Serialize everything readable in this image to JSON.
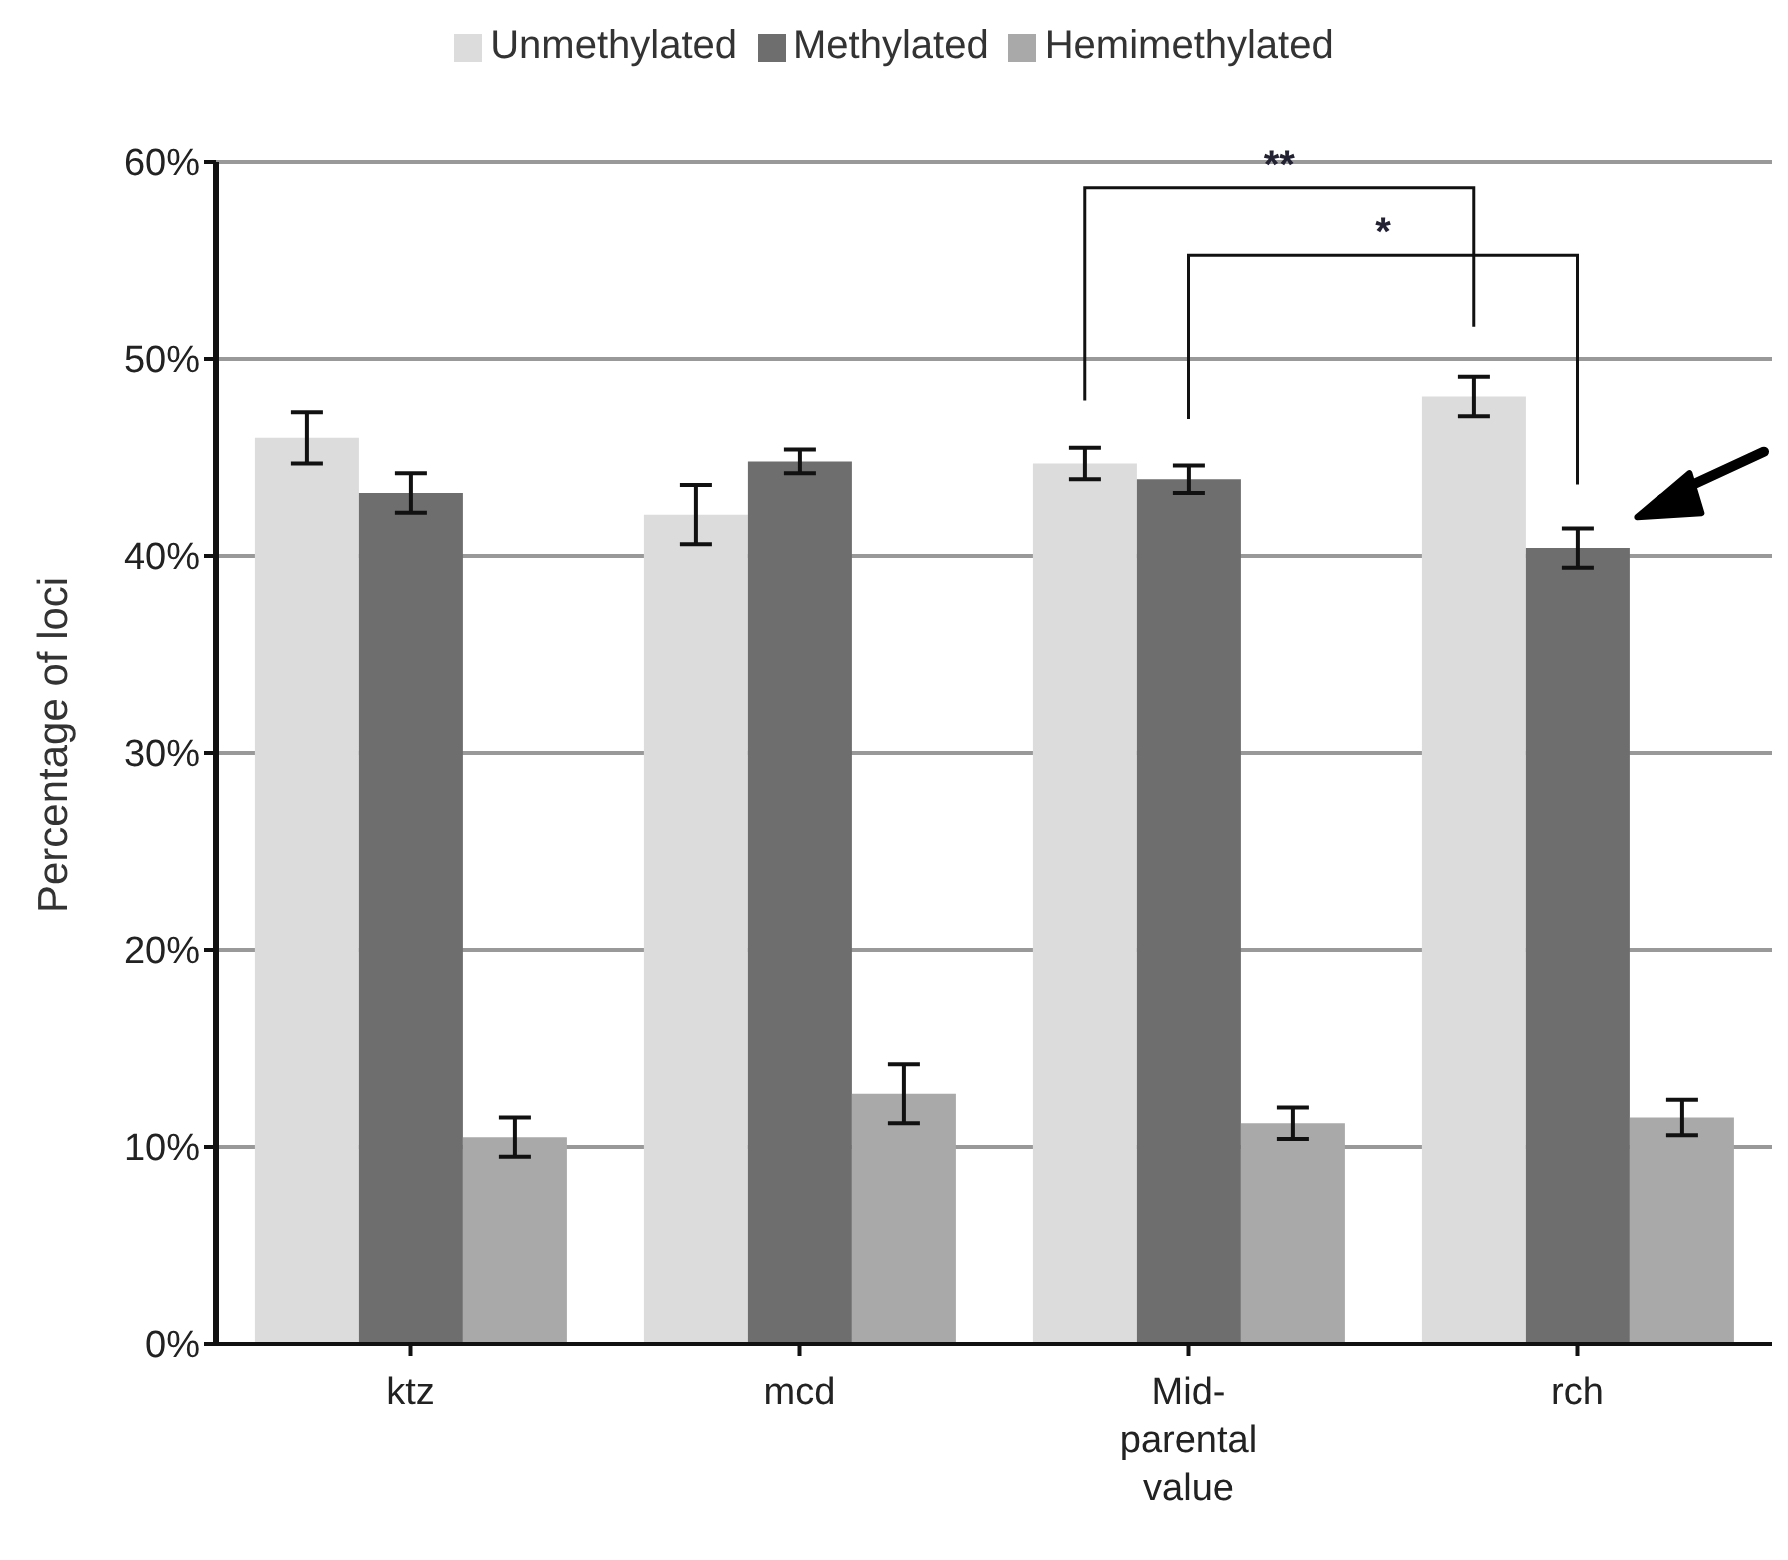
{
  "chart_data": {
    "type": "bar",
    "ylabel": "Percentage of loci",
    "categories": [
      "ktz",
      "mcd",
      "Mid-parental value",
      "rch"
    ],
    "series": [
      {
        "name": "Unmethylated",
        "color": "#dcdcdc",
        "values": [
          46,
          42.1,
          44.7,
          48.1
        ],
        "errors": [
          1.3,
          1.5,
          0.8,
          1
        ]
      },
      {
        "name": "Methylated",
        "color": "#6e6e6e",
        "values": [
          43.2,
          44.8,
          43.9,
          40.4
        ],
        "errors": [
          1,
          0.6,
          0.7,
          1
        ]
      },
      {
        "name": "Hemimethylated",
        "color": "#a9a9a9",
        "values": [
          10.5,
          12.7,
          11.2,
          11.5
        ],
        "errors": [
          1,
          1.5,
          0.8,
          0.9
        ]
      }
    ],
    "ylim": [
      0,
      60
    ],
    "yticks": [
      {
        "value": 0,
        "label": "0%"
      },
      {
        "value": 10,
        "label": "10%"
      },
      {
        "value": 20,
        "label": "20%"
      },
      {
        "value": 30,
        "label": "30%"
      },
      {
        "value": 40,
        "label": "40%"
      },
      {
        "value": 50,
        "label": "50%"
      },
      {
        "value": 60,
        "label": "60%"
      }
    ],
    "grid": "y",
    "legend": "top",
    "annotations": [
      "**",
      "*"
    ]
  }
}
